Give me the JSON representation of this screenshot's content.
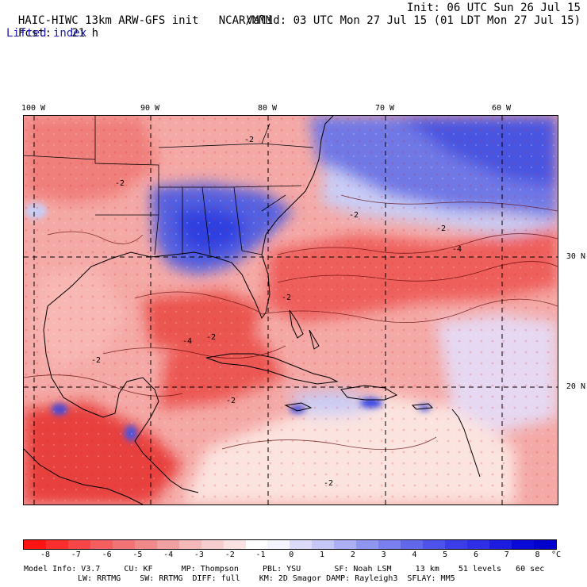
{
  "header": {
    "model_title": "HAIC-HIWC 13km ARW-GFS init",
    "agency": "NCAR/MMM",
    "fcst_label": "Fcst:",
    "fcst_hours": "21 h",
    "field_name": "Lifted index",
    "init_label": "Init: 06 UTC Sun 26 Jul 15",
    "valid_label": "Valid: 03 UTC Mon 27 Jul 15 (01 LDT Mon 27 Jul 15)"
  },
  "map": {
    "longitude_labels": [
      "100 W",
      "90 W",
      "80 W",
      "70 W",
      "60 W"
    ],
    "latitude_labels": [
      "30 N",
      "20 N"
    ],
    "contour_labels": [
      "-2",
      "-2",
      "-2",
      "-2",
      "-4",
      "-2",
      "-4",
      "-2",
      "-2",
      "-2",
      "-2"
    ],
    "colors": {
      "stable_blue": "#5560e0",
      "deep_blue": "#2a3de0",
      "light_blue": "#c9ccf5",
      "neutral": "#fbeae8",
      "light_red": "#f6b3b0",
      "mid_red": "#ef6a66",
      "deep_red": "#e2201f",
      "coastline": "#000000",
      "grid": "#000000"
    }
  },
  "colorbar": {
    "tick_labels": [
      "-8",
      "-7",
      "-6",
      "-5",
      "-4",
      "-3",
      "-2",
      "-1",
      "0",
      "1",
      "2",
      "3",
      "4",
      "5",
      "6",
      "7",
      "8"
    ],
    "unit": "°C",
    "colors": [
      "#ff1414",
      "#fb2d2d",
      "#f84646",
      "#f55e5e",
      "#f27373",
      "#f08a8a",
      "#f0a0a0",
      "#f5b8b8",
      "#f8cdcd",
      "#fbe2e2",
      "#ffffff",
      "#f4f4ff",
      "#dcdcfa",
      "#c5c8f6",
      "#aab0f3",
      "#9096f0",
      "#7a7ff0",
      "#6168ec",
      "#4d52ea",
      "#3a3ee8",
      "#2d30e6",
      "#1c1ce0",
      "#0a0ad8",
      "#0000cc"
    ]
  },
  "footer": {
    "line1": "Model Info: V3.7     CU: KF      MP: Thompson     PBL: YSU       SF: Noah LSM     13 km    51 levels   60 sec",
    "line2": "LW: RRTMG    SW: RRTMG  DIFF: full    KM: 2D Smagor DAMP: Rayleigh3  SFLAY: MM5"
  }
}
